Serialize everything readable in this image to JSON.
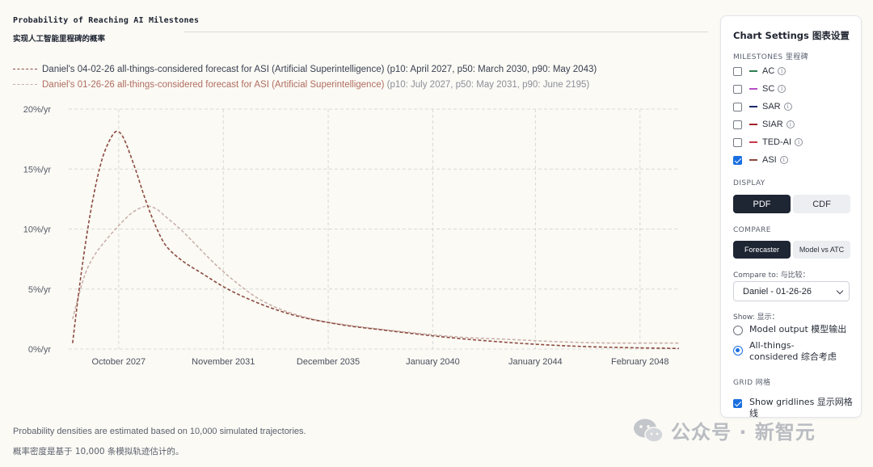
{
  "chart_data": {
    "type": "line",
    "title": "Probability of Reaching AI Milestones",
    "subtitle": "实现人工智能里程碑的概率",
    "xlabel": "",
    "ylabel": "",
    "x_range": [
      2025.8,
      2049.6
    ],
    "ylim": [
      0,
      20
    ],
    "y_ticks": [
      "0%/yr",
      "5%/yr",
      "10%/yr",
      "15%/yr",
      "20%/yr"
    ],
    "y_tick_values": [
      0,
      5,
      10,
      15,
      20
    ],
    "x_ticks": [
      "October 2027",
      "November 2031",
      "December 2035",
      "January 2040",
      "January 2044",
      "February 2048"
    ],
    "x_tick_values": [
      2027.75,
      2031.83,
      2035.92,
      2040.0,
      2044.0,
      2048.08
    ],
    "grid": true,
    "series": [
      {
        "name": "Daniel's 04-02-26 all-things-considered forecast for ASI (Artificial Superintelligence)",
        "color": "#8c4a3f",
        "x": [
          2025.95,
          2026.3,
          2026.7,
          2027.1,
          2027.5,
          2027.75,
          2028.0,
          2028.4,
          2028.8,
          2029.2,
          2029.6,
          2030.2,
          2031.0,
          2032.0,
          2033.0,
          2034.0,
          2035.0,
          2036.5,
          2038.0,
          2040.0,
          2042.0,
          2044.0,
          2046.0,
          2048.0,
          2049.6
        ],
        "y": [
          0.5,
          6.5,
          12.0,
          15.8,
          17.8,
          18.1,
          17.3,
          15.0,
          12.4,
          10.2,
          8.6,
          7.4,
          6.3,
          5.0,
          4.0,
          3.2,
          2.6,
          2.0,
          1.6,
          1.1,
          0.7,
          0.4,
          0.2,
          0.1,
          0.05
        ]
      },
      {
        "name": "Daniel's 01-26-26 all-things-considered forecast for ASI (Artificial Superintelligence)",
        "color": "#c9ada7",
        "x": [
          2025.95,
          2026.4,
          2026.8,
          2027.3,
          2027.8,
          2028.3,
          2028.8,
          2029.2,
          2029.6,
          2030.2,
          2030.8,
          2031.5,
          2032.3,
          2033.2,
          2034.2,
          2035.5,
          2037.0,
          2039.0,
          2041.0,
          2043.0,
          2045.0,
          2047.0,
          2049.6
        ],
        "y": [
          2.5,
          6.0,
          7.8,
          9.2,
          10.4,
          11.4,
          11.9,
          11.7,
          11.0,
          9.9,
          8.6,
          7.1,
          5.6,
          4.2,
          3.2,
          2.4,
          1.9,
          1.4,
          1.0,
          0.8,
          0.6,
          0.5,
          0.5
        ]
      }
    ]
  },
  "legend": [
    {
      "name": "Daniel's 04-02-26 all-things-considered forecast for ASI (Artificial Superintelligence)",
      "rest": " (p10: April 2027, p50: March 2030, p90: May 2043)"
    },
    {
      "name": "Daniel's 01-26-26 all-things-considered forecast for ASI (Artificial Superintelligence)",
      "rest": " (p10: July 2027, p50: May 2031, p90: June 2195)"
    }
  ],
  "footnote": {
    "en": "Probability densities are estimated based on 10,000 simulated trajectories.",
    "zh": "概率密度是基于 10,000 条模拟轨迹估计的。"
  },
  "watermark": "公众号 · 新智元",
  "settings": {
    "title": "Chart Settings  图表设置",
    "milestones_label": "MILESTONES  里程碑",
    "milestones": [
      {
        "label": "AC",
        "color": "#2e7d4f",
        "checked": false
      },
      {
        "label": "SC",
        "color": "#b64fc4",
        "checked": false
      },
      {
        "label": "SAR",
        "color": "#1b2a6b",
        "checked": false
      },
      {
        "label": "SIAR",
        "color": "#a4202a",
        "checked": false
      },
      {
        "label": "TED-AI",
        "color": "#c9384a",
        "checked": false
      },
      {
        "label": "ASI",
        "color": "#8c4a3f",
        "checked": true
      }
    ],
    "info_glyph": "i",
    "display_label": "DISPLAY",
    "display_options": [
      "PDF",
      "CDF"
    ],
    "compare_label": "COMPARE",
    "compare_options": [
      "Forecaster",
      "Model vs ATC"
    ],
    "compare_to_label": "Compare to:  与比较：",
    "compare_to_value": "Daniel - 01-26-26",
    "show_label": "Show:  显示：",
    "show_options": [
      "Model output  模型输出",
      "All-things-considered  综合考虑"
    ],
    "grid_label": "GRID  网格",
    "gridlines_label": "Show gridlines  显示网格线"
  }
}
